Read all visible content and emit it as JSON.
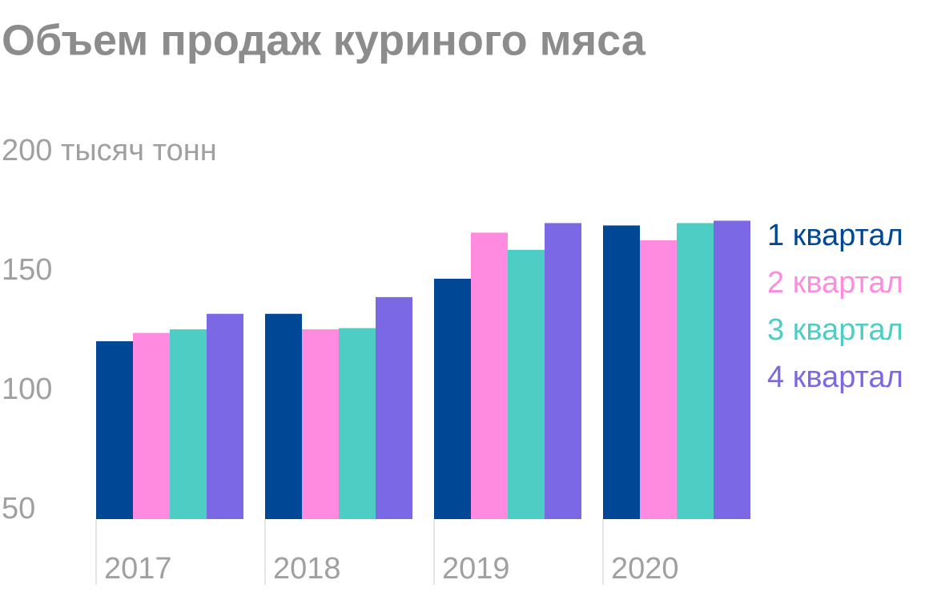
{
  "chart_data": {
    "type": "bar",
    "title": "Объем продаж куриного мяса",
    "categories": [
      "2017",
      "2018",
      "2019",
      "2020"
    ],
    "series": [
      {
        "name": "1 квартал",
        "color": "#004896",
        "values": [
          124.5,
          136,
          150.7,
          173
        ]
      },
      {
        "name": "2 квартал",
        "color": "#ff8be0",
        "values": [
          128,
          129.5,
          170,
          166.8
        ]
      },
      {
        "name": "3 квартал",
        "color": "#4ecdc4",
        "values": [
          129.5,
          130,
          162.8,
          174
        ]
      },
      {
        "name": "4 квартал",
        "color": "#7b68e4",
        "values": [
          136,
          143,
          174,
          175
        ]
      }
    ],
    "ylim": [
      50,
      200
    ],
    "yticks": [
      50,
      100,
      150,
      {
        "value": 200,
        "label": "200 тысяч тонн"
      }
    ],
    "grid": false,
    "legend": "right"
  }
}
